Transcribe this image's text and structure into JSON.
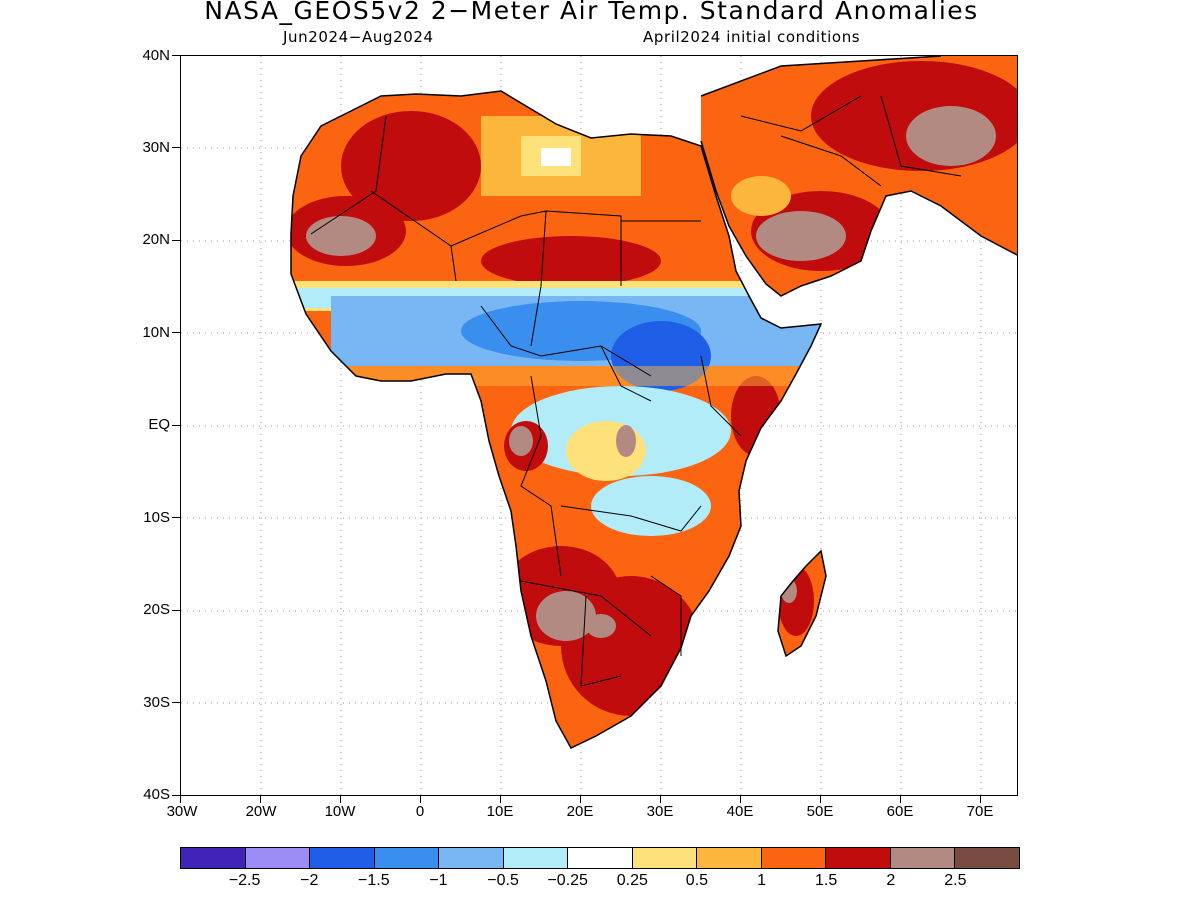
{
  "title": "NASA_GEOS5v2 2−Meter Air Temp. Standard Anomalies",
  "subtitle_left": "Jun2024−Aug2024",
  "subtitle_right": "April2024 initial conditions",
  "lat_labels": [
    "40N",
    "30N",
    "20N",
    "10N",
    "EQ",
    "10S",
    "20S",
    "30S",
    "40S"
  ],
  "lon_labels": [
    "30W",
    "20W",
    "10W",
    "0",
    "10E",
    "20E",
    "30E",
    "40E",
    "50E",
    "60E",
    "70E"
  ],
  "colorbar": {
    "colors": [
      "#3f23b8",
      "#9c8cf5",
      "#1f5fe8",
      "#3a8eee",
      "#78b6f4",
      "#b2ecf8",
      "#ffffff",
      "#fde27c",
      "#fdb63c",
      "#fb6410",
      "#c00c0c",
      "#b28a82",
      "#784c40"
    ],
    "labels": [
      "−2.5",
      "−2",
      "−1.5",
      "−1",
      "−0.5",
      "−0.25",
      "0.25",
      "0.5",
      "1",
      "1.5",
      "2",
      "2.5"
    ]
  }
}
